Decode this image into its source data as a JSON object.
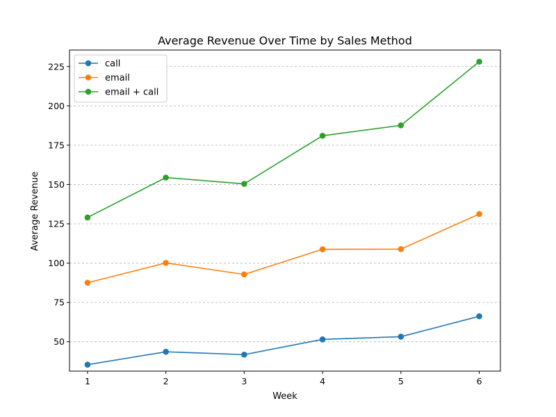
{
  "chart_data": {
    "type": "line",
    "title": "Average Revenue Over Time by Sales Method",
    "xlabel": "Week",
    "ylabel": "Average Revenue",
    "x": [
      1,
      2,
      3,
      4,
      5,
      6
    ],
    "xlim": [
      0.77,
      6.27
    ],
    "ylim": [
      31.3,
      235.5
    ],
    "yticks": [
      50,
      75,
      100,
      125,
      150,
      175,
      200,
      225
    ],
    "grid": "horizontal dashed",
    "legend_position": "top-left",
    "series": [
      {
        "name": "call",
        "color": "#1f77b4",
        "values": [
          35.4,
          43.6,
          41.8,
          51.5,
          53.2,
          66.2
        ]
      },
      {
        "name": "email",
        "color": "#ff7f0e",
        "values": [
          87.5,
          100.1,
          92.8,
          108.8,
          108.9,
          131.2
        ]
      },
      {
        "name": "email + call",
        "color": "#2ca02c",
        "values": [
          129.0,
          154.4,
          150.4,
          181.0,
          187.6,
          228.1
        ]
      }
    ]
  }
}
